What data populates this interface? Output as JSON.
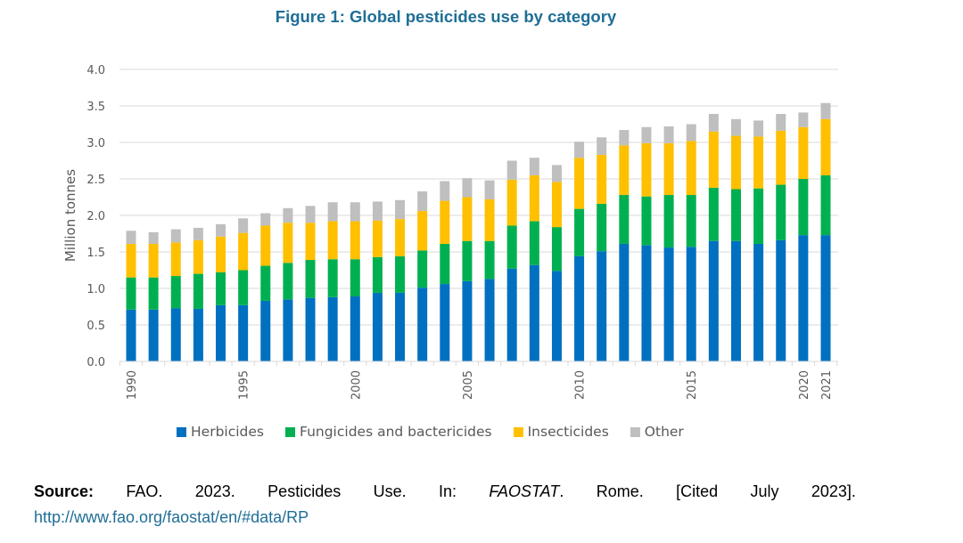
{
  "chart_data": {
    "type": "bar",
    "stacked": true,
    "title": "Figure 1: Global pesticides use by category",
    "xlabel": "",
    "ylabel": "Million tonnes",
    "ylim": [
      0,
      4.0
    ],
    "yticks": [
      "0.0",
      "0.5",
      "1.0",
      "1.5",
      "2.0",
      "2.5",
      "3.0",
      "3.5",
      "4.0"
    ],
    "ytick_values": [
      0,
      0.5,
      1.0,
      1.5,
      2.0,
      2.5,
      3.0,
      3.5,
      4.0
    ],
    "grid": true,
    "legend_position": "bottom",
    "categories": [
      "1990",
      "1991",
      "1992",
      "1993",
      "1994",
      "1995",
      "1996",
      "1997",
      "1998",
      "1999",
      "2000",
      "2001",
      "2002",
      "2003",
      "2004",
      "2005",
      "2006",
      "2007",
      "2008",
      "2009",
      "2010",
      "2011",
      "2012",
      "2013",
      "2014",
      "2015",
      "2016",
      "2017",
      "2018",
      "2019",
      "2020",
      "2021"
    ],
    "xtick_labels": [
      "1990",
      "1995",
      "2000",
      "2005",
      "2010",
      "2015",
      "2020",
      "2021"
    ],
    "series": [
      {
        "name": "Herbicides",
        "color": "#0070c0",
        "values": [
          0.71,
          0.71,
          0.73,
          0.72,
          0.77,
          0.77,
          0.83,
          0.85,
          0.87,
          0.88,
          0.89,
          0.94,
          0.94,
          1.01,
          1.06,
          1.1,
          1.13,
          1.27,
          1.32,
          1.24,
          1.44,
          1.51,
          1.61,
          1.59,
          1.56,
          1.57,
          1.65,
          1.65,
          1.61,
          1.66,
          1.73,
          1.73
        ]
      },
      {
        "name": "Fungicides and bactericides",
        "color": "#00b050",
        "values": [
          0.44,
          0.44,
          0.44,
          0.48,
          0.45,
          0.48,
          0.48,
          0.5,
          0.52,
          0.52,
          0.51,
          0.49,
          0.5,
          0.51,
          0.55,
          0.55,
          0.52,
          0.59,
          0.6,
          0.6,
          0.65,
          0.65,
          0.67,
          0.67,
          0.72,
          0.71,
          0.73,
          0.71,
          0.76,
          0.76,
          0.77,
          0.82
        ]
      },
      {
        "name": "Insecticides",
        "color": "#ffc000",
        "values": [
          0.46,
          0.46,
          0.46,
          0.46,
          0.49,
          0.51,
          0.55,
          0.55,
          0.51,
          0.52,
          0.52,
          0.5,
          0.51,
          0.54,
          0.59,
          0.6,
          0.57,
          0.63,
          0.63,
          0.62,
          0.7,
          0.67,
          0.68,
          0.73,
          0.71,
          0.74,
          0.77,
          0.73,
          0.71,
          0.74,
          0.71,
          0.77
        ]
      },
      {
        "name": "Other",
        "color": "#bfbfbf",
        "values": [
          0.18,
          0.16,
          0.18,
          0.17,
          0.17,
          0.2,
          0.17,
          0.2,
          0.23,
          0.26,
          0.26,
          0.26,
          0.26,
          0.27,
          0.27,
          0.26,
          0.26,
          0.26,
          0.24,
          0.23,
          0.22,
          0.24,
          0.21,
          0.22,
          0.23,
          0.23,
          0.24,
          0.23,
          0.22,
          0.23,
          0.2,
          0.22
        ]
      }
    ]
  },
  "source": {
    "label": "Source:",
    "parts": [
      "FAO.",
      "2023.",
      "Pesticides",
      "Use.",
      "In:"
    ],
    "italic": "FAOSTAT",
    "after_italic": ".",
    "rest": [
      "Rome.",
      "[Cited",
      "July",
      "2023]."
    ],
    "link": "http://www.fao.org/faostat/en/#data/RP"
  }
}
